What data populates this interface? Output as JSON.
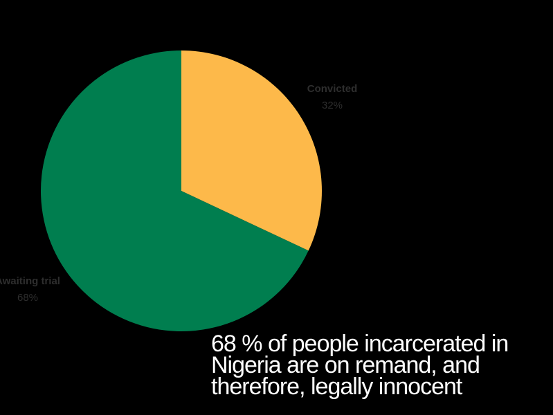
{
  "chart_data": {
    "type": "pie",
    "title": "",
    "slices": [
      {
        "label": "Convicted",
        "pct_label": "32%",
        "value": 32,
        "color": "#FDB94A"
      },
      {
        "label": "Awaiting trial",
        "pct_label": "68%",
        "value": 68,
        "color": "#007E4F"
      }
    ],
    "label_color": "#2E2E2E",
    "legend": "none"
  },
  "caption": {
    "lines": [
      "68 % of people incarcerated in",
      "Nigeria are on remand,  and",
      "therefore, legally innocent"
    ]
  },
  "colors": {
    "background": "#000000",
    "caption_text": "#FFFFFF"
  }
}
